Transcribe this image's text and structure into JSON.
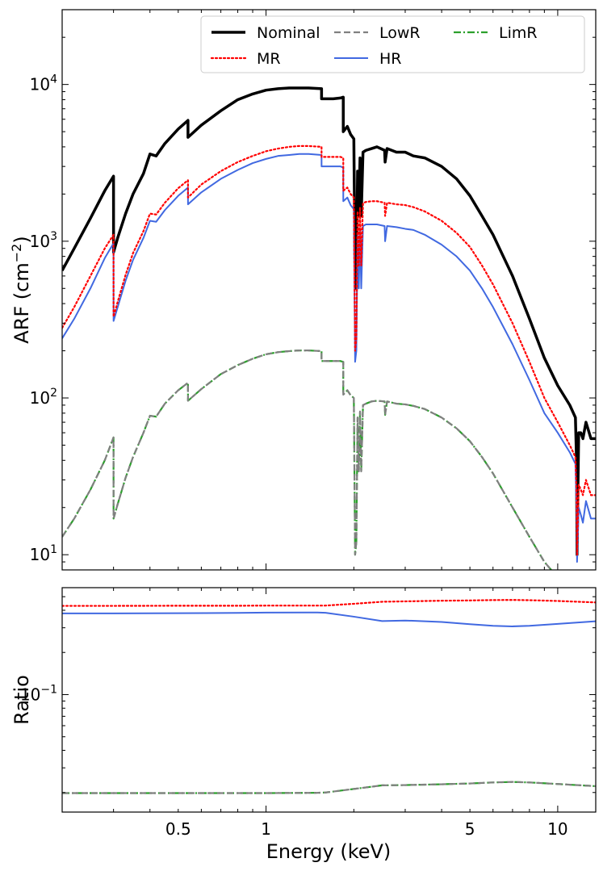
{
  "chart_data": [
    {
      "type": "line",
      "panel": "top",
      "xlabel": "",
      "ylabel": "ARF (cm$^{-2}$)",
      "ylabel_base": "ARF (cm",
      "ylabel_exp": "−2",
      "ylabel_end": ")",
      "xscale": "log",
      "yscale": "log",
      "xlim": [
        0.2,
        13.5
      ],
      "ylim": [
        8,
        30000
      ],
      "yticks": [
        {
          "base": "10",
          "exp": "1",
          "value": 10
        },
        {
          "base": "10",
          "exp": "2",
          "value": 100
        },
        {
          "base": "10",
          "exp": "3",
          "value": 1000
        },
        {
          "base": "10",
          "exp": "4",
          "value": 10000
        }
      ],
      "legend_position": "top-right",
      "legend_order": [
        0,
        2,
        4,
        1,
        3
      ],
      "series": [
        {
          "name": "Nominal",
          "color": "#000000",
          "style": "solid",
          "width": 3.5,
          "x": [
            0.2,
            0.22,
            0.25,
            0.28,
            0.3,
            0.3001,
            0.31,
            0.33,
            0.35,
            0.38,
            0.4,
            0.42,
            0.45,
            0.5,
            0.54,
            0.5401,
            0.6,
            0.7,
            0.8,
            0.9,
            1.0,
            1.1,
            1.2,
            1.3,
            1.4,
            1.55,
            1.5501,
            1.6,
            1.7,
            1.8,
            1.84,
            1.8401,
            1.9,
            1.95,
            2.0,
            2.02,
            2.04,
            2.06,
            2.08,
            2.1,
            2.12,
            2.15,
            2.2,
            2.3,
            2.4,
            2.55,
            2.56,
            2.6,
            2.8,
            3.0,
            3.2,
            3.5,
            4.0,
            4.5,
            5.0,
            5.5,
            6.0,
            7.0,
            8.0,
            9.0,
            10.0,
            11.0,
            11.5,
            11.6,
            11.65,
            11.8,
            12.0,
            12.2,
            12.5,
            13.0,
            13.5
          ],
          "y": [
            650,
            900,
            1400,
            2100,
            2600,
            850,
            1050,
            1500,
            2000,
            2700,
            3600,
            3500,
            4200,
            5200,
            5900,
            4600,
            5500,
            6800,
            8000,
            8700,
            9200,
            9400,
            9500,
            9500,
            9500,
            9400,
            8100,
            8100,
            8100,
            8200,
            8300,
            5000,
            5400,
            4800,
            4500,
            600,
            500,
            2800,
            1450,
            3400,
            1450,
            3700,
            3800,
            3900,
            4000,
            3800,
            3200,
            3900,
            3700,
            3700,
            3500,
            3400,
            3000,
            2500,
            1950,
            1450,
            1100,
            600,
            320,
            180,
            120,
            90,
            75,
            40,
            10,
            60,
            60,
            55,
            70,
            55,
            55
          ]
        },
        {
          "name": "HR",
          "color": "#4169e1",
          "style": "solid",
          "width": 2,
          "x": [
            0.2,
            0.22,
            0.25,
            0.28,
            0.3,
            0.3001,
            0.31,
            0.33,
            0.35,
            0.38,
            0.4,
            0.42,
            0.45,
            0.5,
            0.54,
            0.5401,
            0.6,
            0.7,
            0.8,
            0.9,
            1.0,
            1.1,
            1.2,
            1.3,
            1.4,
            1.55,
            1.5501,
            1.6,
            1.7,
            1.8,
            1.84,
            1.8401,
            1.9,
            1.95,
            2.0,
            2.02,
            2.04,
            2.06,
            2.08,
            2.1,
            2.12,
            2.15,
            2.2,
            2.3,
            2.4,
            2.55,
            2.56,
            2.6,
            2.8,
            3.0,
            3.2,
            3.5,
            4.0,
            4.5,
            5.0,
            5.5,
            6.0,
            7.0,
            8.0,
            9.0,
            10.0,
            11.0,
            11.5,
            11.6,
            11.65,
            11.8,
            12.0,
            12.2,
            12.5,
            13.0,
            13.5
          ],
          "y": [
            240,
            320,
            500,
            780,
            970,
            310,
            380,
            560,
            760,
            1050,
            1350,
            1330,
            1580,
            1950,
            2200,
            1720,
            2050,
            2500,
            2850,
            3150,
            3350,
            3500,
            3550,
            3600,
            3600,
            3550,
            3000,
            3000,
            3000,
            3000,
            2950,
            1800,
            1900,
            1700,
            1600,
            170,
            200,
            1100,
            500,
            1200,
            500,
            1250,
            1280,
            1280,
            1280,
            1250,
            1000,
            1250,
            1230,
            1200,
            1180,
            1100,
            950,
            800,
            650,
            500,
            380,
            220,
            130,
            80,
            60,
            45,
            38,
            20,
            9,
            20,
            18,
            16,
            22,
            17,
            17
          ]
        },
        {
          "name": "MR",
          "color": "#ff0000",
          "style": "dotted",
          "width": 2.2,
          "x": [
            0.2,
            0.22,
            0.25,
            0.28,
            0.3,
            0.3001,
            0.31,
            0.33,
            0.35,
            0.38,
            0.4,
            0.42,
            0.45,
            0.5,
            0.54,
            0.5401,
            0.6,
            0.7,
            0.8,
            0.9,
            1.0,
            1.1,
            1.2,
            1.3,
            1.4,
            1.55,
            1.5501,
            1.6,
            1.7,
            1.8,
            1.84,
            1.8401,
            1.9,
            1.95,
            2.0,
            2.02,
            2.04,
            2.06,
            2.08,
            2.1,
            2.12,
            2.15,
            2.2,
            2.3,
            2.4,
            2.55,
            2.56,
            2.6,
            2.8,
            3.0,
            3.2,
            3.5,
            4.0,
            4.5,
            5.0,
            5.5,
            6.0,
            7.0,
            8.0,
            9.0,
            10.0,
            11.0,
            11.5,
            11.6,
            11.65,
            11.8,
            12.0,
            12.2,
            12.5,
            13.0,
            13.5
          ],
          "y": [
            280,
            380,
            600,
            900,
            1100,
            330,
            410,
            610,
            840,
            1160,
            1500,
            1480,
            1760,
            2180,
            2450,
            1900,
            2300,
            2800,
            3200,
            3500,
            3750,
            3900,
            4000,
            4050,
            4050,
            4000,
            3450,
            3450,
            3450,
            3450,
            3400,
            2100,
            2200,
            2000,
            1900,
            200,
            240,
            1550,
            700,
            1650,
            700,
            1750,
            1780,
            1800,
            1800,
            1760,
            1450,
            1760,
            1720,
            1700,
            1650,
            1550,
            1350,
            1130,
            920,
            700,
            530,
            300,
            170,
            100,
            70,
            50,
            42,
            25,
            10,
            28,
            26,
            24,
            30,
            24,
            24
          ]
        },
        {
          "name": "LimR",
          "color": "#2ca02c",
          "style": "dashdot",
          "width": 2.2,
          "x": [
            0.2,
            0.22,
            0.25,
            0.28,
            0.3,
            0.3001,
            0.31,
            0.33,
            0.35,
            0.38,
            0.4,
            0.42,
            0.45,
            0.5,
            0.54,
            0.5401,
            0.6,
            0.7,
            0.8,
            0.9,
            1.0,
            1.1,
            1.2,
            1.3,
            1.4,
            1.55,
            1.5501,
            1.6,
            1.7,
            1.8,
            1.84,
            1.8401,
            1.9,
            1.95,
            2.0,
            2.02,
            2.04,
            2.06,
            2.08,
            2.1,
            2.12,
            2.15,
            2.2,
            2.3,
            2.4,
            2.55,
            2.56,
            2.6,
            2.8,
            3.0,
            3.2,
            3.5,
            4.0,
            4.5,
            5.0,
            5.5,
            6.0,
            7.0,
            8.0,
            9.0,
            9.5
          ],
          "y": [
            13,
            17,
            26,
            40,
            56,
            17,
            21,
            31,
            42,
            60,
            77,
            76,
            92,
            112,
            125,
            96,
            114,
            142,
            162,
            178,
            190,
            196,
            199,
            201,
            201,
            199,
            172,
            172,
            172,
            172,
            170,
            105,
            112,
            104,
            100,
            10,
            12,
            75,
            34,
            82,
            34,
            90,
            92,
            95,
            96,
            95,
            78,
            95,
            92,
            91,
            89,
            85,
            75,
            64,
            53,
            42,
            33,
            20,
            13,
            9,
            8
          ]
        },
        {
          "name": "LowR",
          "color": "#808080",
          "style": "dashed",
          "width": 2.2,
          "x": [
            0.2,
            0.22,
            0.25,
            0.28,
            0.3,
            0.3001,
            0.31,
            0.33,
            0.35,
            0.38,
            0.4,
            0.42,
            0.45,
            0.5,
            0.54,
            0.5401,
            0.6,
            0.7,
            0.8,
            0.9,
            1.0,
            1.1,
            1.2,
            1.3,
            1.4,
            1.55,
            1.5501,
            1.6,
            1.7,
            1.8,
            1.84,
            1.8401,
            1.9,
            1.95,
            2.0,
            2.02,
            2.04,
            2.06,
            2.08,
            2.1,
            2.12,
            2.15,
            2.2,
            2.3,
            2.4,
            2.55,
            2.56,
            2.6,
            2.8,
            3.0,
            3.2,
            3.5,
            4.0,
            4.5,
            5.0,
            5.5,
            6.0,
            7.0,
            8.0,
            9.0,
            9.5
          ],
          "y": [
            13,
            17,
            26,
            40,
            56,
            17,
            21,
            31,
            42,
            60,
            77,
            76,
            92,
            112,
            125,
            96,
            114,
            142,
            162,
            178,
            190,
            196,
            199,
            201,
            201,
            199,
            172,
            172,
            172,
            172,
            170,
            105,
            112,
            104,
            100,
            10,
            12,
            75,
            34,
            82,
            34,
            90,
            92,
            95,
            96,
            95,
            78,
            95,
            92,
            91,
            89,
            85,
            75,
            64,
            53,
            42,
            33,
            20,
            13,
            9,
            8
          ]
        }
      ]
    },
    {
      "type": "line",
      "panel": "bottom",
      "xlabel": "Energy (keV)",
      "ylabel": "Ratio",
      "xscale": "log",
      "yscale": "log",
      "xlim": [
        0.2,
        13.5
      ],
      "ylim": [
        0.0145,
        0.58
      ],
      "xticks": [
        {
          "label": "0.5",
          "value": 0.5
        },
        {
          "label": "1",
          "value": 1
        },
        {
          "label": "5",
          "value": 5
        },
        {
          "label": "10",
          "value": 10
        }
      ],
      "yticks": [
        {
          "base": "10",
          "exp": "−1",
          "value": 0.1
        }
      ],
      "series": [
        {
          "name": "HR",
          "color": "#4169e1",
          "style": "solid",
          "width": 2,
          "x": [
            0.2,
            0.3,
            0.5,
            0.8,
            1.0,
            1.5,
            1.6,
            2.0,
            2.5,
            3.0,
            4.0,
            5.0,
            6.0,
            7.0,
            8.0,
            10.0,
            13.5
          ],
          "y": [
            0.38,
            0.38,
            0.381,
            0.383,
            0.385,
            0.386,
            0.384,
            0.36,
            0.335,
            0.338,
            0.33,
            0.318,
            0.31,
            0.307,
            0.31,
            0.32,
            0.334
          ]
        },
        {
          "name": "MR",
          "color": "#ff0000",
          "style": "dotted",
          "width": 2.2,
          "x": [
            0.2,
            0.3,
            0.5,
            0.8,
            1.0,
            1.5,
            1.6,
            2.0,
            2.5,
            3.0,
            4.0,
            5.0,
            6.0,
            7.0,
            8.0,
            10.0,
            13.5
          ],
          "y": [
            0.43,
            0.43,
            0.431,
            0.431,
            0.432,
            0.432,
            0.432,
            0.445,
            0.46,
            0.463,
            0.468,
            0.47,
            0.473,
            0.474,
            0.472,
            0.466,
            0.455
          ]
        },
        {
          "name": "LimR",
          "color": "#2ca02c",
          "style": "dashdot",
          "width": 2.2,
          "x": [
            0.2,
            0.3,
            0.5,
            0.8,
            1.0,
            1.5,
            1.6,
            2.0,
            2.5,
            3.0,
            4.0,
            5.0,
            6.0,
            7.0,
            8.0,
            10.0,
            13.5
          ],
          "y": [
            0.0198,
            0.0198,
            0.0198,
            0.0198,
            0.0198,
            0.0199,
            0.02,
            0.0212,
            0.0225,
            0.0226,
            0.0229,
            0.0232,
            0.0236,
            0.0238,
            0.0236,
            0.023,
            0.0222
          ]
        },
        {
          "name": "LowR",
          "color": "#808080",
          "style": "dashed",
          "width": 2.2,
          "x": [
            0.2,
            0.3,
            0.5,
            0.8,
            1.0,
            1.5,
            1.6,
            2.0,
            2.5,
            3.0,
            4.0,
            5.0,
            6.0,
            7.0,
            8.0,
            10.0,
            13.5
          ],
          "y": [
            0.0198,
            0.0198,
            0.0198,
            0.0198,
            0.0198,
            0.0199,
            0.02,
            0.0212,
            0.0225,
            0.0226,
            0.0229,
            0.0232,
            0.0236,
            0.0238,
            0.0236,
            0.023,
            0.0222
          ]
        }
      ]
    }
  ]
}
